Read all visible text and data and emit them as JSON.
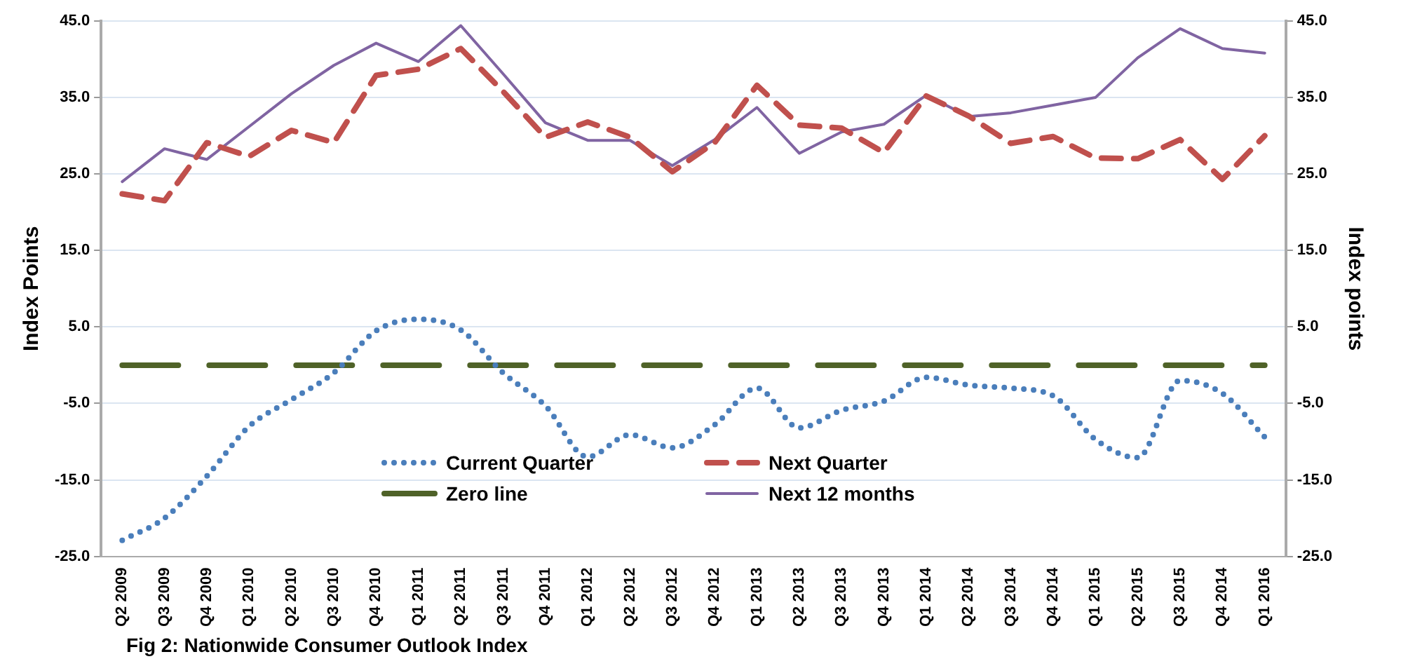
{
  "chart_data": {
    "type": "line",
    "title": "Fig 2: Nationwide Consumer Outlook Index",
    "ylabel": "Index Points",
    "y2label": "Index points",
    "categories": [
      "Q2 2009",
      "Q3 2009",
      "Q4 2009",
      "Q1 2010",
      "Q2 2010",
      "Q3 2010",
      "Q4 2010",
      "Q1 2011",
      "Q2 2011",
      "Q3 2011",
      "Q4 2011",
      "Q1 2012",
      "Q2 2012",
      "Q3 2012",
      "Q4 2012",
      "Q1 2013",
      "Q2 2013",
      "Q3 2013",
      "Q4 2013",
      "Q1 2014",
      "Q2 2014",
      "Q3 2014",
      "Q4 2014",
      "Q1 2015",
      "Q2 2015",
      "Q3 2015",
      "Q4 2014",
      "Q1 2016"
    ],
    "series": [
      {
        "name": "Current Quarter",
        "color": "#4a7ebb",
        "line_style": "dotted",
        "values": [
          -22.9,
          -20,
          -14.5,
          -8,
          -4.5,
          -1,
          4.5,
          6,
          4.6,
          -1,
          -5.3,
          -12,
          -9.1,
          -10.8,
          -7.8,
          -3,
          -8.2,
          -5.9,
          -4.7,
          -1.6,
          -2.6,
          -3,
          -4,
          -9.7,
          -12.1,
          -2,
          -3.7,
          -9.4
        ]
      },
      {
        "name": "Next Quarter",
        "color": "#c0504d",
        "line_style": "dashed",
        "values": [
          22.4,
          21.5,
          29.1,
          27.3,
          30.7,
          29.1,
          37.9,
          38.7,
          41.4,
          35.8,
          29.8,
          31.8,
          29.8,
          25.3,
          29.1,
          36.6,
          31.4,
          31,
          27.8,
          35.2,
          32.6,
          29,
          29.9,
          27.1,
          27,
          29.5,
          24.3,
          30
        ]
      },
      {
        "name": "Zero line",
        "color": "#4f6228",
        "line_style": "dashed",
        "values": [
          0,
          0,
          0,
          0,
          0,
          0,
          0,
          0,
          0,
          0,
          0,
          0,
          0,
          0,
          0,
          0,
          0,
          0,
          0,
          0,
          0,
          0,
          0,
          0,
          0,
          0,
          0,
          0
        ]
      },
      {
        "name": "Next 12 months",
        "color": "#8064a2",
        "line_style": "solid",
        "values": [
          24,
          28.3,
          26.9,
          31.2,
          35.5,
          39.2,
          42.1,
          39.7,
          44.4,
          38.1,
          31.7,
          29.4,
          29.4,
          26.1,
          29.5,
          33.7,
          27.7,
          30.5,
          31.5,
          35.3,
          32.5,
          33,
          34,
          35,
          40.2,
          44,
          41.4,
          40.8
        ]
      }
    ],
    "ylim": [
      -25,
      45
    ],
    "yticks": [
      {
        "value": -25,
        "label": "-25.0"
      },
      {
        "value": -15,
        "label": "-15.0"
      },
      {
        "value": -5,
        "label": "-5.0"
      },
      {
        "value": 5,
        "label": "5.0"
      },
      {
        "value": 15,
        "label": "15.0"
      },
      {
        "value": 25,
        "label": "25.0"
      },
      {
        "value": 35,
        "label": "35.0"
      },
      {
        "value": 45,
        "label": "45.0"
      }
    ],
    "y2lim": [
      -25,
      45
    ],
    "y2ticks": [
      {
        "value": -25,
        "label": "-25.0"
      },
      {
        "value": -15,
        "label": "-15.0"
      },
      {
        "value": -5,
        "label": "-5.0"
      },
      {
        "value": 5,
        "label": "5.0"
      },
      {
        "value": 15,
        "label": "15.0"
      },
      {
        "value": 25,
        "label": "25.0"
      },
      {
        "value": 35,
        "label": "35.0"
      },
      {
        "value": 45,
        "label": "45.0"
      }
    ],
    "grid": "y",
    "legend": "bottom",
    "marker": "none"
  }
}
